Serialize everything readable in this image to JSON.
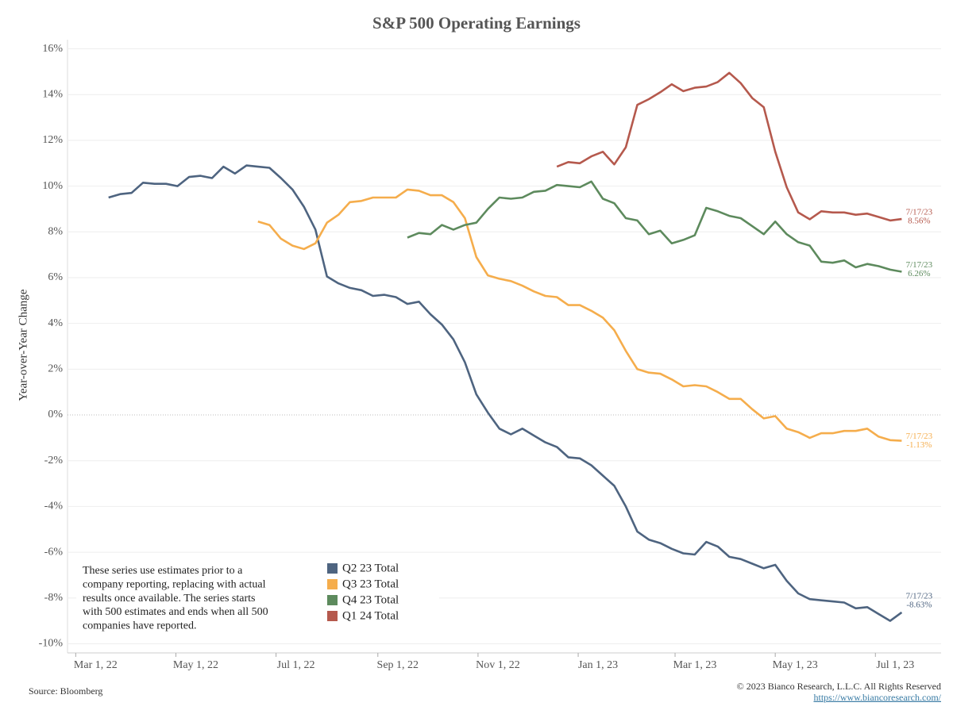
{
  "chart_data": {
    "type": "line",
    "title": "S&P 500 Operating Earnings",
    "y_label": "Year-over-Year Change",
    "source": "Source: Bloomberg",
    "copyright": "© 2023 Bianco Research, L.L.C. All Rights Reserved",
    "url": "https://www.biancoresearch.com/",
    "note": [
      "These series use estimates prior to a",
      "company reporting, replacing with actual",
      "results once available. The series starts",
      "with 500 estimates and ends when all 500",
      "companies have reported."
    ],
    "grid": true,
    "xlim": [
      "2022-02-24",
      "2023-08-10"
    ],
    "xticks": [
      {
        "value": "2022-03-01",
        "label": "Mar 1, 22"
      },
      {
        "value": "2022-05-01",
        "label": "May 1, 22"
      },
      {
        "value": "2022-07-01",
        "label": "Jul 1, 22"
      },
      {
        "value": "2022-09-01",
        "label": "Sep 1, 22"
      },
      {
        "value": "2022-11-01",
        "label": "Nov 1, 22"
      },
      {
        "value": "2023-01-01",
        "label": "Jan 1, 23"
      },
      {
        "value": "2023-03-01",
        "label": "Mar 1, 23"
      },
      {
        "value": "2023-05-01",
        "label": "May 1, 23"
      },
      {
        "value": "2023-07-01",
        "label": "Jul 1, 23"
      }
    ],
    "ylim": [
      -10.4,
      16.4
    ],
    "yticks": [
      {
        "value": -10,
        "label": "-10%"
      },
      {
        "value": -8,
        "label": "-8%"
      },
      {
        "value": -6,
        "label": "-6%"
      },
      {
        "value": -4,
        "label": "-4%"
      },
      {
        "value": -2,
        "label": "-2%"
      },
      {
        "value": 0,
        "label": "0%"
      },
      {
        "value": 2,
        "label": "2%"
      },
      {
        "value": 4,
        "label": "4%"
      },
      {
        "value": 6,
        "label": "6%"
      },
      {
        "value": 8,
        "label": "8%"
      },
      {
        "value": 10,
        "label": "10%"
      },
      {
        "value": 12,
        "label": "12%"
      },
      {
        "value": 14,
        "label": "14%"
      },
      {
        "value": 16,
        "label": "16%"
      }
    ],
    "x": [
      "2022-03-21",
      "2022-03-28",
      "2022-04-04",
      "2022-04-11",
      "2022-04-18",
      "2022-04-25",
      "2022-05-02",
      "2022-05-09",
      "2022-05-16",
      "2022-05-23",
      "2022-05-30",
      "2022-06-06",
      "2022-06-13",
      "2022-06-20",
      "2022-06-27",
      "2022-07-04",
      "2022-07-11",
      "2022-07-18",
      "2022-07-25",
      "2022-08-01",
      "2022-08-08",
      "2022-08-15",
      "2022-08-22",
      "2022-08-29",
      "2022-09-05",
      "2022-09-12",
      "2022-09-19",
      "2022-09-26",
      "2022-10-03",
      "2022-10-10",
      "2022-10-17",
      "2022-10-24",
      "2022-10-31",
      "2022-11-07",
      "2022-11-14",
      "2022-11-21",
      "2022-11-28",
      "2022-12-05",
      "2022-12-12",
      "2022-12-19",
      "2022-12-26",
      "2023-01-02",
      "2023-01-09",
      "2023-01-16",
      "2023-01-23",
      "2023-01-30",
      "2023-02-06",
      "2023-02-13",
      "2023-02-20",
      "2023-02-27",
      "2023-03-06",
      "2023-03-13",
      "2023-03-20",
      "2023-03-27",
      "2023-04-03",
      "2023-04-10",
      "2023-04-17",
      "2023-04-24",
      "2023-05-01",
      "2023-05-08",
      "2023-05-15",
      "2023-05-22",
      "2023-05-29",
      "2023-06-05",
      "2023-06-12",
      "2023-06-19",
      "2023-06-26",
      "2023-07-03",
      "2023-07-10",
      "2023-07-17"
    ],
    "series": [
      {
        "name": "Q2 23 Total",
        "color": "#4e6480",
        "annotation": {
          "date": "7/17/23",
          "label": "-8.63%"
        },
        "values": [
          9.5,
          9.65,
          9.7,
          10.15,
          10.1,
          10.1,
          10.0,
          10.4,
          10.45,
          10.35,
          10.85,
          10.55,
          10.9,
          10.85,
          10.8,
          10.35,
          9.85,
          9.1,
          8.1,
          6.05,
          5.75,
          5.55,
          5.45,
          5.2,
          5.25,
          5.15,
          4.85,
          4.95,
          4.4,
          3.95,
          3.3,
          2.3,
          0.9,
          0.1,
          -0.6,
          -0.85,
          -0.6,
          -0.9,
          -1.2,
          -1.4,
          -1.85,
          -1.9,
          -2.2,
          -2.65,
          -3.1,
          -4.0,
          -5.1,
          -5.45,
          -5.6,
          -5.85,
          -6.05,
          -6.1,
          -5.55,
          -5.75,
          -6.2,
          -6.3,
          -6.5,
          -6.7,
          -6.55,
          -7.25,
          -7.8,
          -8.05,
          -8.1,
          -8.15,
          -8.2,
          -8.45,
          -8.4,
          -8.7,
          -9.0,
          -8.63
        ]
      },
      {
        "name": "Q3 23 Total",
        "color": "#f5ad4c",
        "annotation": {
          "date": "7/17/23",
          "label": "-1.13%"
        },
        "values": [
          null,
          null,
          null,
          null,
          null,
          null,
          null,
          null,
          null,
          null,
          null,
          null,
          null,
          8.45,
          8.3,
          7.7,
          7.4,
          7.25,
          7.5,
          8.4,
          8.75,
          9.3,
          9.35,
          9.5,
          9.5,
          9.5,
          9.85,
          9.8,
          9.6,
          9.6,
          9.3,
          8.6,
          6.9,
          6.1,
          5.95,
          5.85,
          5.65,
          5.4,
          5.2,
          5.15,
          4.8,
          4.8,
          4.55,
          4.25,
          3.7,
          2.8,
          2.0,
          1.85,
          1.8,
          1.55,
          1.25,
          1.3,
          1.25,
          1.0,
          0.7,
          0.7,
          0.25,
          -0.15,
          -0.05,
          -0.6,
          -0.75,
          -1.0,
          -0.8,
          -0.8,
          -0.7,
          -0.7,
          -0.6,
          -0.95,
          -1.1,
          -1.13
        ]
      },
      {
        "name": "Q4 23 Total",
        "color": "#5d8a5d",
        "annotation": {
          "date": "7/17/23",
          "label": "6.26%"
        },
        "values": [
          null,
          null,
          null,
          null,
          null,
          null,
          null,
          null,
          null,
          null,
          null,
          null,
          null,
          null,
          null,
          null,
          null,
          null,
          null,
          null,
          null,
          null,
          null,
          null,
          null,
          null,
          7.75,
          7.95,
          7.9,
          8.3,
          8.1,
          8.3,
          8.4,
          9.0,
          9.5,
          9.45,
          9.5,
          9.75,
          9.8,
          10.05,
          10.0,
          9.95,
          10.2,
          9.45,
          9.25,
          8.6,
          8.5,
          7.9,
          8.05,
          7.5,
          7.65,
          7.85,
          9.05,
          8.9,
          8.7,
          8.6,
          8.25,
          7.9,
          8.45,
          7.9,
          7.55,
          7.4,
          6.7,
          6.65,
          6.75,
          6.45,
          6.6,
          6.5,
          6.35,
          6.26
        ]
      },
      {
        "name": "Q1 24 Total",
        "color": "#b5594d",
        "annotation": {
          "date": "7/17/23",
          "label": "8.56%"
        },
        "values": [
          null,
          null,
          null,
          null,
          null,
          null,
          null,
          null,
          null,
          null,
          null,
          null,
          null,
          null,
          null,
          null,
          null,
          null,
          null,
          null,
          null,
          null,
          null,
          null,
          null,
          null,
          null,
          null,
          null,
          null,
          null,
          null,
          null,
          null,
          null,
          null,
          null,
          null,
          null,
          10.85,
          11.05,
          11.0,
          11.3,
          11.5,
          10.95,
          11.7,
          13.55,
          13.8,
          14.1,
          14.45,
          14.15,
          14.3,
          14.35,
          14.55,
          14.95,
          14.5,
          13.85,
          13.45,
          11.5,
          9.95,
          8.85,
          8.55,
          8.9,
          8.85,
          8.85,
          8.75,
          8.8,
          8.65,
          8.5,
          8.56
        ]
      }
    ]
  }
}
